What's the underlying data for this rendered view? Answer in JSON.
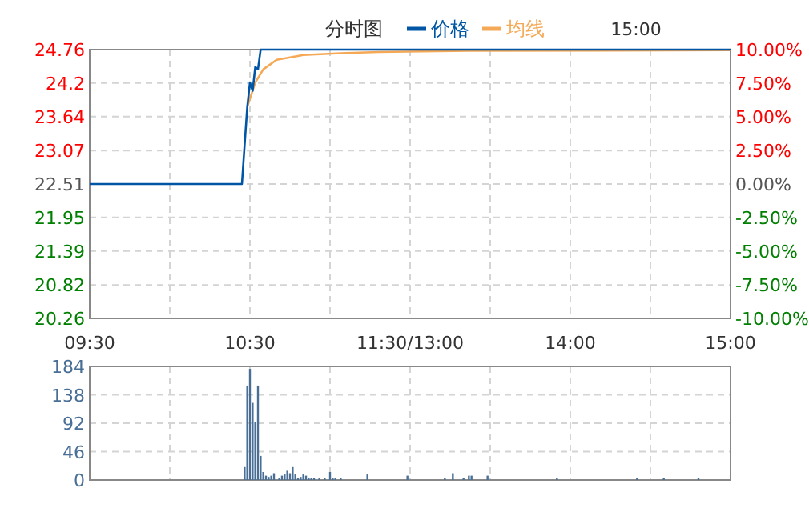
{
  "chart_data": [
    {
      "type": "line",
      "title": "分时图",
      "annotations": [
        "15:00"
      ],
      "legend": "top",
      "grid": true,
      "categories": [
        "09:30",
        null,
        null,
        null,
        null,
        null,
        null,
        null,
        null,
        null,
        null,
        null,
        null,
        null,
        null,
        null,
        null,
        null,
        null,
        null,
        null,
        null,
        null,
        null,
        null,
        null,
        null,
        null,
        null,
        null,
        null,
        null,
        null,
        null,
        null,
        null,
        null,
        null,
        null,
        null,
        null,
        null,
        null,
        null,
        null,
        null,
        null,
        null,
        null,
        null,
        null,
        null,
        null,
        null,
        null,
        null,
        null,
        null,
        null,
        null,
        "10:30",
        null,
        null,
        null,
        null,
        null,
        null,
        null,
        null,
        null,
        null,
        null,
        null,
        null,
        null,
        null,
        null,
        null,
        null,
        null,
        null,
        null,
        null,
        null,
        null,
        null,
        null,
        null,
        null,
        null,
        null,
        null,
        null,
        null,
        null,
        null,
        null,
        null,
        null,
        null,
        null,
        null,
        null,
        null,
        null,
        null,
        null,
        null,
        null,
        null,
        null,
        null,
        null,
        null,
        null,
        null,
        null,
        null,
        null,
        null,
        "11:30/13:00",
        null,
        null,
        null,
        null,
        null,
        null,
        null,
        null,
        null,
        null,
        null,
        null,
        null,
        null,
        null,
        null,
        null,
        null,
        null,
        null,
        null,
        null,
        null,
        null,
        null,
        null,
        null,
        null,
        null,
        null,
        null,
        null,
        null,
        null,
        null,
        null,
        null,
        null,
        null,
        null,
        null,
        null,
        null,
        null,
        null,
        null,
        null,
        null,
        null,
        null,
        null,
        null,
        null,
        null,
        null,
        null,
        null,
        null,
        null,
        "14:00",
        null,
        null,
        null,
        null,
        null,
        null,
        null,
        null,
        null,
        null,
        null,
        null,
        null,
        null,
        null,
        null,
        null,
        null,
        null,
        null,
        null,
        null,
        null,
        null,
        null,
        null,
        null,
        null,
        null,
        null,
        null,
        null,
        null,
        null,
        null,
        null,
        null,
        null,
        null,
        null,
        null,
        null,
        null,
        null,
        null,
        null,
        null,
        null,
        null,
        null,
        null,
        null,
        null,
        null,
        null,
        null,
        null,
        null,
        null,
        "15:00"
      ],
      "ylim": [
        20.26,
        24.76
      ],
      "yticks": [
        20.26,
        20.82,
        21.39,
        21.95,
        22.51,
        23.07,
        23.64,
        24.2,
        24.76
      ],
      "y2lim": [
        -10,
        10
      ],
      "y2ticks": [
        {
          "value": -10,
          "label": "-10.00%"
        },
        {
          "value": -7.5,
          "label": "-7.50%"
        },
        {
          "value": -5,
          "label": "-5.00%"
        },
        {
          "value": -2.5,
          "label": "-2.50%"
        },
        {
          "value": 0,
          "label": "0.00%"
        },
        {
          "value": 2.5,
          "label": "2.50%"
        },
        {
          "value": 5,
          "label": "5.00%"
        },
        {
          "value": 7.5,
          "label": "7.50%"
        },
        {
          "value": 10,
          "label": "10.00%"
        }
      ],
      "series": [
        {
          "name": "价格",
          "color": "#0055a5",
          "values": [
            22.51,
            null,
            null,
            null,
            null,
            null,
            null,
            null,
            null,
            null,
            null,
            null,
            null,
            null,
            null,
            null,
            null,
            null,
            null,
            null,
            null,
            null,
            null,
            null,
            null,
            null,
            null,
            null,
            null,
            null,
            null,
            null,
            null,
            null,
            null,
            null,
            null,
            null,
            null,
            null,
            null,
            null,
            null,
            null,
            null,
            null,
            null,
            null,
            null,
            null,
            null,
            null,
            null,
            null,
            null,
            null,
            null,
            22.51,
            23.16,
            23.8,
            24.21,
            24.07,
            24.47,
            24.43,
            24.76,
            null,
            null,
            null,
            null,
            null,
            null,
            null,
            null,
            null,
            null,
            null,
            null,
            null,
            null,
            null,
            null,
            null,
            null,
            null,
            null,
            null,
            null,
            null,
            null,
            null,
            null,
            null,
            null,
            null,
            null,
            null,
            null,
            null,
            null,
            null,
            null,
            null,
            null,
            null,
            null,
            null,
            null,
            null,
            null,
            null,
            null,
            null,
            null,
            null,
            null,
            null,
            null,
            null,
            null,
            null,
            null,
            null,
            null,
            null,
            null,
            null,
            null,
            null,
            null,
            null,
            null,
            null,
            null,
            null,
            null,
            null,
            null,
            null,
            null,
            null,
            null,
            null,
            null,
            null,
            null,
            null,
            null,
            null,
            null,
            null,
            null,
            null,
            null,
            null,
            null,
            null,
            null,
            null,
            null,
            null,
            null,
            null,
            null,
            null,
            null,
            null,
            null,
            null,
            null,
            null,
            null,
            null,
            null,
            null,
            null,
            null,
            null,
            null,
            null,
            null,
            null,
            null,
            null,
            null,
            null,
            null,
            null,
            null,
            null,
            null,
            null,
            null,
            null,
            null,
            null,
            null,
            null,
            null,
            null,
            null,
            null,
            null,
            null,
            null,
            null,
            null,
            null,
            null,
            null,
            null,
            null,
            null,
            null,
            null,
            null,
            null,
            null,
            null,
            null,
            null,
            null,
            null,
            null,
            null,
            null,
            null,
            null,
            null,
            null,
            null,
            null,
            null,
            null,
            null,
            null,
            null,
            null,
            null,
            null,
            null,
            24.76
          ]
        },
        {
          "name": "均线",
          "color": "#f5a957",
          "values": [
            null,
            null,
            null,
            null,
            null,
            null,
            null,
            null,
            null,
            null,
            null,
            null,
            null,
            null,
            null,
            null,
            null,
            null,
            null,
            null,
            null,
            null,
            null,
            null,
            null,
            null,
            null,
            null,
            null,
            null,
            null,
            null,
            null,
            null,
            null,
            null,
            null,
            null,
            null,
            null,
            null,
            null,
            null,
            null,
            null,
            null,
            null,
            null,
            null,
            null,
            null,
            null,
            null,
            null,
            null,
            null,
            null,
            null,
            null,
            23.8,
            null,
            null,
            24.21,
            null,
            null,
            24.43,
            null,
            null,
            null,
            null,
            24.59,
            null,
            null,
            null,
            null,
            null,
            null,
            null,
            null,
            null,
            24.67,
            null,
            null,
            null,
            null,
            null,
            null,
            null,
            null,
            null,
            null,
            null,
            null,
            null,
            24.7,
            null,
            null,
            null,
            null,
            null,
            null,
            null,
            null,
            null,
            null,
            null,
            null,
            null,
            24.72,
            null,
            null,
            null,
            null,
            null,
            null,
            null,
            null,
            null,
            null,
            null,
            null,
            null,
            null,
            null,
            null,
            null,
            null,
            null,
            null,
            null,
            null,
            null,
            null,
            null,
            null,
            null,
            null,
            null,
            null,
            null,
            null,
            null,
            24.74,
            null,
            null,
            null,
            null,
            null,
            null,
            null,
            null,
            null,
            null,
            null,
            null,
            null,
            null,
            null,
            null,
            null,
            null,
            null,
            null,
            null,
            null,
            null,
            null,
            null,
            null,
            null,
            null,
            null,
            null,
            null,
            null,
            null,
            null,
            null,
            null,
            null,
            null,
            null,
            null,
            null,
            null,
            null,
            null,
            null,
            null,
            null,
            null,
            null,
            null,
            null,
            null,
            null,
            null,
            null,
            null,
            null,
            null,
            null,
            null,
            null,
            null,
            null,
            null,
            null,
            null,
            null,
            null,
            null,
            null,
            null,
            null,
            null,
            null,
            null,
            null,
            null,
            null,
            null,
            null,
            null,
            null,
            null,
            null,
            null,
            null,
            null,
            null,
            null,
            null,
            null,
            null,
            null,
            null,
            null,
            null,
            null,
            24.75
          ]
        }
      ]
    },
    {
      "type": "bar",
      "grid": true,
      "categories": [
        null,
        null,
        null,
        null,
        null,
        null,
        null,
        null,
        null,
        null,
        null,
        null,
        null,
        null,
        null,
        null,
        null,
        null,
        null,
        null,
        null,
        null,
        null,
        null,
        null,
        null,
        null,
        null,
        null,
        null,
        null,
        null,
        null,
        null,
        null,
        null,
        null,
        null,
        null,
        null,
        null,
        null,
        null,
        null,
        null,
        null,
        null,
        null,
        null,
        null,
        null,
        null,
        null,
        null,
        null,
        null,
        null,
        null,
        null,
        null,
        null,
        null,
        null,
        null,
        null,
        null,
        null,
        null,
        null,
        null,
        null,
        null,
        null,
        null,
        null,
        null,
        null,
        null,
        null,
        null,
        null,
        null,
        null,
        null,
        null,
        null,
        null,
        null,
        null,
        null,
        null,
        null,
        null,
        null,
        null,
        null,
        null,
        null,
        null,
        null,
        null,
        null,
        null,
        null,
        null,
        null,
        null,
        null,
        null,
        null,
        null,
        null,
        null,
        null,
        null,
        null,
        null,
        null,
        null,
        null,
        null,
        null,
        null,
        null,
        null,
        null,
        null,
        null,
        null,
        null,
        null,
        null,
        null,
        null,
        null,
        null,
        null,
        null,
        null,
        null,
        null,
        null,
        null,
        null,
        null,
        null,
        null,
        null,
        null,
        null,
        null,
        null,
        null,
        null,
        null,
        null,
        null,
        null,
        null,
        null,
        null,
        null,
        null,
        null,
        null,
        null,
        null,
        null,
        null,
        null,
        null,
        null,
        null,
        null,
        null,
        null,
        null,
        null,
        null,
        null,
        null,
        null,
        null,
        null,
        null,
        null,
        null,
        null,
        null,
        null,
        null,
        null,
        null,
        null,
        null,
        null,
        null,
        null,
        null,
        null,
        null,
        null,
        null,
        null,
        null,
        null,
        null,
        null,
        null,
        null,
        null,
        null,
        null,
        null,
        null,
        null,
        null,
        null,
        null,
        null,
        null,
        null,
        null,
        null,
        null,
        null,
        null,
        null,
        null,
        null,
        null,
        null,
        null,
        null,
        null,
        null,
        null,
        null,
        null,
        null,
        null
      ],
      "ylim": [
        0,
        184
      ],
      "yticks": [
        0,
        46,
        92,
        138,
        184
      ],
      "series": [
        {
          "color": "#4a6f96",
          "values": [
            null,
            null,
            null,
            null,
            null,
            null,
            null,
            null,
            null,
            null,
            null,
            null,
            null,
            null,
            null,
            null,
            null,
            null,
            null,
            null,
            null,
            null,
            null,
            null,
            null,
            null,
            null,
            null,
            null,
            null,
            null,
            null,
            null,
            null,
            null,
            null,
            null,
            null,
            null,
            null,
            null,
            null,
            null,
            null,
            null,
            null,
            null,
            null,
            null,
            null,
            null,
            null,
            null,
            null,
            null,
            null,
            null,
            null,
            21,
            153,
            180,
            125,
            94,
            153,
            39,
            13,
            7,
            5,
            7,
            11,
            null,
            3,
            7,
            9,
            15,
            11,
            21,
            9,
            3,
            5,
            9,
            7,
            3,
            3,
            3,
            null,
            3,
            null,
            3,
            null,
            13,
            3,
            3,
            null,
            3,
            null,
            null,
            null,
            null,
            null,
            null,
            null,
            null,
            null,
            9,
            null,
            null,
            null,
            null,
            null,
            null,
            null,
            null,
            null,
            null,
            null,
            null,
            null,
            null,
            7,
            null,
            null,
            null,
            null,
            null,
            null,
            null,
            null,
            null,
            null,
            null,
            null,
            null,
            3,
            null,
            null,
            11,
            null,
            null,
            null,
            3,
            null,
            7,
            7,
            null,
            null,
            null,
            null,
            null,
            7,
            null,
            null,
            null,
            null,
            null,
            null,
            null,
            null,
            null,
            null,
            null,
            null,
            null,
            null,
            null,
            null,
            null,
            null,
            null,
            null,
            null,
            null,
            null,
            null,
            null,
            3,
            null,
            null,
            null,
            null,
            null,
            null,
            null,
            null,
            null,
            null,
            null,
            null,
            null,
            null,
            null,
            null,
            null,
            null,
            null,
            null,
            null,
            null,
            null,
            null,
            null,
            null,
            null,
            null,
            null,
            3,
            null,
            null,
            null,
            null,
            null,
            null,
            null,
            null,
            null,
            3,
            null,
            null,
            null,
            null,
            null,
            null,
            null,
            null,
            null,
            null,
            null,
            null,
            3,
            null,
            null,
            null,
            null,
            null,
            null,
            null,
            null,
            null,
            null,
            null,
            null
          ]
        }
      ]
    }
  ]
}
